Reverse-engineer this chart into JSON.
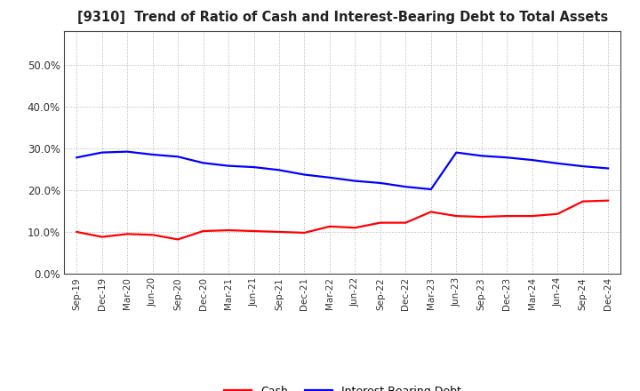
{
  "title": "[9310]  Trend of Ratio of Cash and Interest-Bearing Debt to Total Assets",
  "x_labels": [
    "Sep-19",
    "Dec-19",
    "Mar-20",
    "Jun-20",
    "Sep-20",
    "Dec-20",
    "Mar-21",
    "Jun-21",
    "Sep-21",
    "Dec-21",
    "Mar-22",
    "Jun-22",
    "Sep-22",
    "Dec-22",
    "Mar-23",
    "Jun-23",
    "Sep-23",
    "Dec-23",
    "Mar-24",
    "Jun-24",
    "Sep-24",
    "Dec-24"
  ],
  "cash": [
    0.1,
    0.088,
    0.095,
    0.093,
    0.082,
    0.102,
    0.104,
    0.102,
    0.1,
    0.098,
    0.113,
    0.11,
    0.122,
    0.122,
    0.148,
    0.138,
    0.136,
    0.138,
    0.138,
    0.143,
    0.173,
    0.175
  ],
  "debt": [
    0.278,
    0.29,
    0.292,
    0.285,
    0.28,
    0.265,
    0.258,
    0.255,
    0.248,
    0.237,
    0.23,
    0.222,
    0.217,
    0.208,
    0.202,
    0.29,
    0.282,
    0.278,
    0.272,
    0.264,
    0.257,
    0.252
  ],
  "cash_color": "#ff0000",
  "debt_color": "#0000ff",
  "background_color": "#ffffff",
  "plot_bg_color": "#ffffff",
  "grid_color": "#aaaaaa",
  "ylim": [
    0.0,
    0.58
  ],
  "yticks": [
    0.0,
    0.1,
    0.2,
    0.3,
    0.4,
    0.5
  ],
  "legend_cash": "Cash",
  "legend_debt": "Interest-Bearing Debt",
  "line_width": 1.6,
  "title_color": "#222222",
  "tick_color": "#333333"
}
